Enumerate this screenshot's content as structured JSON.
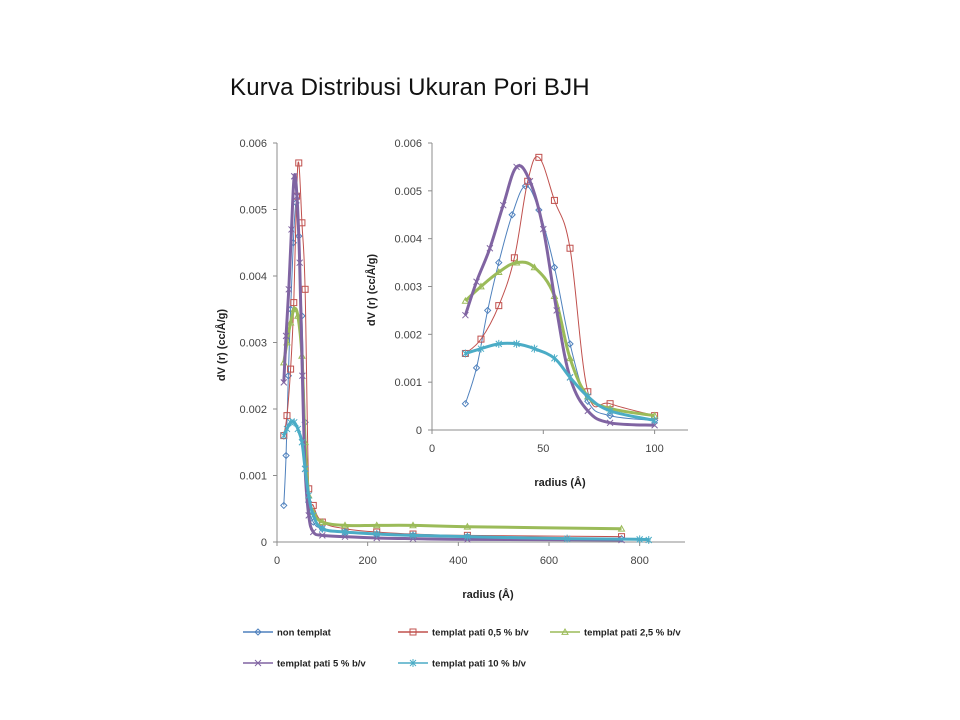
{
  "slide": {
    "title": "Kurva Distribusi Ukuran Pori BJH"
  },
  "chart_data": [
    {
      "type": "line",
      "name_role": "main",
      "xlabel": "radius (Å)",
      "ylabel": "dV (r) (cc/Å/g)",
      "xlim": [
        0,
        900
      ],
      "ylim": [
        0,
        0.006
      ],
      "xticks": [
        "0",
        "200",
        "400",
        "600",
        "800"
      ],
      "xtick_values": [
        0,
        200,
        400,
        600,
        800
      ],
      "yticks": [
        "0",
        "0.001",
        "0.002",
        "0.003",
        "0.004",
        "0.005",
        "0.006"
      ],
      "ytick_values": [
        0,
        0.001,
        0.002,
        0.003,
        0.004,
        0.005,
        0.006
      ],
      "grid": false,
      "series": [
        {
          "name": "non templat",
          "color": "#4f81bd",
          "marker": "diamond",
          "width": 1,
          "x": [
            15,
            20,
            25,
            30,
            36,
            42,
            48,
            55,
            62,
            70,
            80,
            100,
            150,
            220,
            300,
            420,
            760
          ],
          "y": [
            0.00055,
            0.0013,
            0.0025,
            0.0035,
            0.0045,
            0.0051,
            0.0046,
            0.0034,
            0.0018,
            0.0006,
            0.0003,
            0.0002,
            0.00015,
            0.00012,
            0.0001,
            8e-05,
            5e-05
          ]
        },
        {
          "name": "templat pati 0,5 % b/v",
          "color": "#c0504d",
          "marker": "square",
          "width": 1,
          "x": [
            15,
            22,
            30,
            37,
            43,
            48,
            55,
            62,
            70,
            80,
            100,
            150,
            220,
            300,
            420,
            760
          ],
          "y": [
            0.0016,
            0.0019,
            0.0026,
            0.0036,
            0.0052,
            0.0057,
            0.0048,
            0.0038,
            0.0008,
            0.00055,
            0.0003,
            0.0002,
            0.00015,
            0.00012,
            0.0001,
            8e-05
          ]
        },
        {
          "name": "templat pati 2,5 % b/v",
          "color": "#9bbb59",
          "marker": "triangle",
          "width": 3,
          "x": [
            15,
            22,
            30,
            38,
            46,
            55,
            62,
            70,
            80,
            100,
            150,
            220,
            300,
            420,
            760
          ],
          "y": [
            0.0027,
            0.003,
            0.0033,
            0.0035,
            0.0034,
            0.0028,
            0.0015,
            0.0007,
            0.00045,
            0.0003,
            0.00025,
            0.00025,
            0.00025,
            0.00023,
            0.0002
          ]
        },
        {
          "name": "templat pati 5 % b/v",
          "color": "#8064a2",
          "marker": "x",
          "width": 3,
          "x": [
            15,
            20,
            26,
            32,
            38,
            44,
            50,
            56,
            62,
            70,
            80,
            100,
            150,
            220,
            300,
            420,
            760
          ],
          "y": [
            0.0024,
            0.0031,
            0.0038,
            0.0047,
            0.0055,
            0.0052,
            0.0042,
            0.0025,
            0.0011,
            0.0004,
            0.00015,
            0.0001,
            8e-05,
            6e-05,
            5e-05,
            4e-05,
            3e-05
          ]
        },
        {
          "name": "templat pati 10 % b/v",
          "color": "#4bacc6",
          "marker": "star",
          "width": 3,
          "x": [
            15,
            22,
            30,
            38,
            46,
            55,
            62,
            70,
            80,
            100,
            150,
            220,
            300,
            420,
            640,
            800,
            820
          ],
          "y": [
            0.0016,
            0.0017,
            0.0018,
            0.0018,
            0.0017,
            0.0015,
            0.0011,
            0.0007,
            0.0004,
            0.0002,
            0.00015,
            0.00012,
            0.0001,
            8e-05,
            5e-05,
            4e-05,
            3e-05
          ]
        }
      ]
    },
    {
      "type": "line",
      "name_role": "inset",
      "xlabel": "radius (Å)",
      "ylabel": "dV (r) (cc/Å/g)",
      "xlim": [
        0,
        115
      ],
      "ylim": [
        0,
        0.006
      ],
      "xticks": [
        "0",
        "50",
        "100"
      ],
      "xtick_values": [
        0,
        50,
        100
      ],
      "yticks": [
        "0",
        "0.001",
        "0.002",
        "0.003",
        "0.004",
        "0.005",
        "0.006"
      ],
      "ytick_values": [
        0,
        0.001,
        0.002,
        0.003,
        0.004,
        0.005,
        0.006
      ],
      "grid": false,
      "series_ref": "same as main chart, x range 0–115 Å"
    }
  ],
  "legend": {
    "placement": "bottom",
    "items": [
      {
        "label": "non templat",
        "color": "#4f81bd",
        "marker": "diamond"
      },
      {
        "label": "templat pati 0,5 % b/v",
        "color": "#c0504d",
        "marker": "square"
      },
      {
        "label": "templat pati 2,5 % b/v",
        "color": "#9bbb59",
        "marker": "triangle"
      },
      {
        "label": "templat pati 5 % b/v",
        "color": "#8064a2",
        "marker": "x"
      },
      {
        "label": "templat pati 10 % b/v",
        "color": "#4bacc6",
        "marker": "star"
      }
    ]
  }
}
